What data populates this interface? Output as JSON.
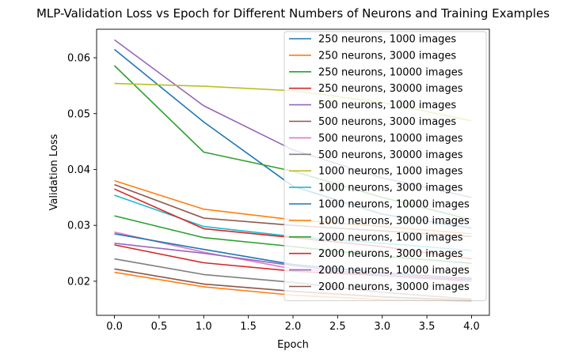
{
  "chart_data": {
    "type": "line",
    "title": "MLP-Validation Loss vs Epoch for Different Numbers of Neurons and Training Examples",
    "xlabel": "Epoch",
    "ylabel": "Validation Loss",
    "xlim": [
      -0.2,
      4.2
    ],
    "ylim": [
      0.0139,
      0.0651
    ],
    "xticks": [
      0.0,
      0.5,
      1.0,
      1.5,
      2.0,
      2.5,
      3.0,
      3.5,
      4.0
    ],
    "xtick_labels": [
      "0.0",
      "0.5",
      "1.0",
      "1.5",
      "2.0",
      "2.5",
      "3.0",
      "3.5",
      "4.0"
    ],
    "yticks": [
      0.02,
      0.03,
      0.04,
      0.05,
      0.06
    ],
    "ytick_labels": [
      "0.02",
      "0.03",
      "0.04",
      "0.05",
      "0.06"
    ],
    "grid": false,
    "legend_position": "top-right",
    "x": [
      0,
      1,
      2,
      3,
      4
    ],
    "series": [
      {
        "name": "250 neurons, 1000 images",
        "color": "#1f77b4",
        "values": [
          0.0615,
          0.0485,
          0.037,
          0.032,
          0.0295
        ]
      },
      {
        "name": "250 neurons, 3000 images",
        "color": "#ff7f0e",
        "values": [
          0.0216,
          0.019,
          0.0175,
          0.0167,
          0.0165
        ]
      },
      {
        "name": "250 neurons, 10000 images",
        "color": "#2ca02c",
        "values": [
          0.0586,
          0.0431,
          0.0397,
          0.035,
          0.031
        ]
      },
      {
        "name": "250 neurons, 30000 images",
        "color": "#d62728",
        "values": [
          0.0265,
          0.0233,
          0.0218,
          0.021,
          0.0203
        ]
      },
      {
        "name": "500 neurons, 1000 images",
        "color": "#9467bd",
        "values": [
          0.0632,
          0.0514,
          0.0435,
          0.0385,
          0.035
        ]
      },
      {
        "name": "500 neurons, 3000 images",
        "color": "#8c564b",
        "values": [
          0.0373,
          0.0313,
          0.03,
          0.029,
          0.028
        ]
      },
      {
        "name": "500 neurons, 10000 images",
        "color": "#e377c2",
        "values": [
          0.0288,
          0.0252,
          0.0222,
          0.0212,
          0.0206
        ]
      },
      {
        "name": "500 neurons, 30000 images",
        "color": "#7f7f7f",
        "values": [
          0.024,
          0.0212,
          0.0198,
          0.018,
          0.0168
        ]
      },
      {
        "name": "1000 neurons, 1000 images",
        "color": "#bcbd22",
        "values": [
          0.0554,
          0.0549,
          0.0541,
          0.052,
          0.0487
        ]
      },
      {
        "name": "1000 neurons, 3000 images",
        "color": "#17becf",
        "values": [
          0.0354,
          0.0298,
          0.028,
          0.0268,
          0.0255
        ]
      },
      {
        "name": "1000 neurons, 10000 images",
        "color": "#1f77b4",
        "values": [
          0.0285,
          0.0257,
          0.023,
          0.0215,
          0.0205
        ]
      },
      {
        "name": "1000 neurons, 30000 images",
        "color": "#ff7f0e",
        "values": [
          0.038,
          0.0329,
          0.031,
          0.0298,
          0.0285
        ]
      },
      {
        "name": "2000 neurons, 1000 images",
        "color": "#2ca02c",
        "values": [
          0.0317,
          0.0278,
          0.0262,
          0.0245,
          0.0232
        ]
      },
      {
        "name": "2000 neurons, 3000 images",
        "color": "#d62728",
        "values": [
          0.0365,
          0.0294,
          0.0278,
          0.0262,
          0.024
        ]
      },
      {
        "name": "2000 neurons, 10000 images",
        "color": "#9467bd",
        "values": [
          0.0268,
          0.025,
          0.0228,
          0.021,
          0.02
        ]
      },
      {
        "name": "2000 neurons, 30000 images",
        "color": "#8c564b",
        "values": [
          0.0222,
          0.0195,
          0.0182,
          0.0172,
          0.0166
        ]
      }
    ]
  }
}
